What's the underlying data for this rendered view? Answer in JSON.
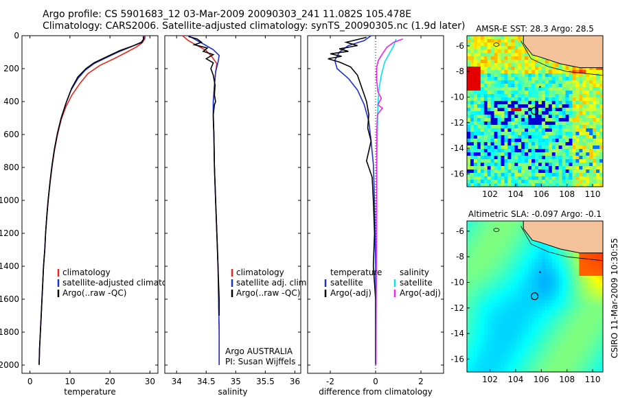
{
  "header": {
    "line1": "Argo profile: CS 5901683_12 03-Mar-2009 20090303_241 11.082S 105.478E",
    "line2": "Climatology: CARS2006. Satellite-adjusted climatology: synTS_20090305.nc (1.9d later)"
  },
  "footer_credit": "CSIRO 11-Mar-2009 10:30:55",
  "colors": {
    "climatology": "#e8251f",
    "satellite": "#1a2fd6",
    "argo": "#000000",
    "cyan": "#00e5ee",
    "magenta": "#ee22ee"
  },
  "chart_data": [
    {
      "type": "line",
      "xlabel": "temperature",
      "xlim": [
        -2,
        32
      ],
      "xticks": [
        "0",
        "10",
        "20",
        "30"
      ],
      "ylim": [
        2050,
        0
      ],
      "yticks": [
        "0",
        "200",
        "400",
        "600",
        "800",
        "1000",
        "1200",
        "1400",
        "1600",
        "1800",
        "2000"
      ],
      "legend": [
        "climatology",
        "satellite-adjusted climatology",
        "Argo(..raw -QC)"
      ],
      "series": [
        {
          "name": "climatology",
          "color": "#e8251f",
          "points": [
            [
              28.8,
              0
            ],
            [
              28.7,
              20
            ],
            [
              28.0,
              45
            ],
            [
              26.5,
              70
            ],
            [
              24.2,
              100
            ],
            [
              21.0,
              140
            ],
            [
              17.5,
              180
            ],
            [
              14.5,
              230
            ],
            [
              12.5,
              290
            ],
            [
              10.5,
              360
            ],
            [
              9.0,
              430
            ],
            [
              7.8,
              510
            ],
            [
              6.9,
              600
            ],
            [
              6.1,
              700
            ],
            [
              5.5,
              800
            ],
            [
              5.0,
              900
            ],
            [
              4.5,
              1000
            ],
            [
              4.2,
              1100
            ],
            [
              3.9,
              1200
            ],
            [
              3.7,
              1300
            ],
            [
              3.4,
              1400
            ],
            [
              3.2,
              1500
            ],
            [
              3.0,
              1600
            ],
            [
              2.8,
              1700
            ],
            [
              2.6,
              1800
            ],
            [
              2.4,
              1900
            ],
            [
              2.3,
              2000
            ]
          ]
        },
        {
          "name": "satellite-adjusted climatology",
          "color": "#1a2fd6",
          "points": [
            [
              28.5,
              0
            ],
            [
              28.5,
              20
            ],
            [
              27.8,
              40
            ],
            [
              25.5,
              65
            ],
            [
              22.0,
              100
            ],
            [
              18.5,
              140
            ],
            [
              16.0,
              170
            ],
            [
              13.8,
              210
            ],
            [
              12.0,
              260
            ],
            [
              10.3,
              330
            ],
            [
              9.0,
              410
            ],
            [
              7.8,
              500
            ],
            [
              6.9,
              590
            ],
            [
              6.1,
              690
            ],
            [
              5.5,
              790
            ],
            [
              5.0,
              890
            ],
            [
              4.6,
              990
            ],
            [
              4.2,
              1100
            ],
            [
              3.9,
              1200
            ],
            [
              3.7,
              1300
            ],
            [
              3.4,
              1400
            ],
            [
              3.2,
              1500
            ],
            [
              3.0,
              1600
            ],
            [
              2.8,
              1700
            ],
            [
              2.6,
              1800
            ],
            [
              2.4,
              1900
            ],
            [
              2.3,
              2000
            ]
          ]
        },
        {
          "name": "Argo(..raw -QC)",
          "color": "#000000",
          "points": [
            [
              28.3,
              5
            ],
            [
              28.4,
              20
            ],
            [
              28.0,
              40
            ],
            [
              26.0,
              60
            ],
            [
              22.5,
              90
            ],
            [
              19.0,
              130
            ],
            [
              16.0,
              165
            ],
            [
              14.0,
              200
            ],
            [
              12.0,
              250
            ],
            [
              10.4,
              320
            ],
            [
              9.0,
              410
            ],
            [
              7.8,
              500
            ],
            [
              6.9,
              590
            ],
            [
              6.1,
              690
            ],
            [
              5.5,
              790
            ],
            [
              5.0,
              890
            ],
            [
              4.6,
              990
            ],
            [
              4.2,
              1100
            ],
            [
              3.9,
              1200
            ],
            [
              3.7,
              1300
            ],
            [
              3.4,
              1400
            ],
            [
              3.2,
              1500
            ],
            [
              3.0,
              1600
            ],
            [
              2.8,
              1700
            ],
            [
              2.6,
              1800
            ],
            [
              2.4,
              1900
            ],
            [
              2.3,
              1995
            ]
          ]
        }
      ]
    },
    {
      "type": "line",
      "xlabel": "salinity",
      "xlim": [
        33.8,
        36.1
      ],
      "xticks": [
        "34",
        "34.5",
        "35",
        "35.5",
        "36"
      ],
      "ylim": [
        2050,
        0
      ],
      "legend": [
        "climatology",
        "satellite adj. clim.",
        "Argo(..raw -QC)"
      ],
      "annotations": [
        "Argo AUSTRALIA",
        "PI: Susan Wijffels"
      ],
      "series": [
        {
          "name": "climatology",
          "color": "#e8251f",
          "points": [
            [
              34.1,
              0
            ],
            [
              34.2,
              30
            ],
            [
              34.35,
              60
            ],
            [
              34.5,
              90
            ],
            [
              34.6,
              130
            ],
            [
              34.68,
              170
            ],
            [
              34.66,
              220
            ],
            [
              34.64,
              300
            ],
            [
              34.62,
              400
            ],
            [
              34.62,
              500
            ],
            [
              34.63,
              600
            ],
            [
              34.64,
              800
            ],
            [
              34.66,
              1000
            ],
            [
              34.68,
              1200
            ],
            [
              34.7,
              1400
            ],
            [
              34.71,
              1600
            ],
            [
              34.72,
              1800
            ],
            [
              34.72,
              2000
            ]
          ]
        },
        {
          "name": "satellite adj. clim.",
          "color": "#1a2fd6",
          "points": [
            [
              34.2,
              0
            ],
            [
              34.3,
              20
            ],
            [
              34.45,
              50
            ],
            [
              34.62,
              85
            ],
            [
              34.72,
              120
            ],
            [
              34.7,
              160
            ],
            [
              34.66,
              220
            ],
            [
              34.64,
              300
            ],
            [
              34.62,
              400
            ],
            [
              34.62,
              500
            ],
            [
              34.63,
              600
            ],
            [
              34.64,
              800
            ],
            [
              34.66,
              1000
            ],
            [
              34.68,
              1200
            ],
            [
              34.7,
              1400
            ],
            [
              34.71,
              1600
            ],
            [
              34.72,
              1800
            ],
            [
              34.72,
              2000
            ]
          ]
        },
        {
          "name": "Argo(..raw -QC)",
          "color": "#000000",
          "points": [
            [
              34.2,
              5
            ],
            [
              34.35,
              20
            ],
            [
              34.42,
              40
            ],
            [
              34.3,
              55
            ],
            [
              34.52,
              75
            ],
            [
              34.45,
              95
            ],
            [
              34.62,
              115
            ],
            [
              34.5,
              140
            ],
            [
              34.62,
              165
            ],
            [
              34.58,
              200
            ],
            [
              34.62,
              240
            ],
            [
              34.65,
              300
            ],
            [
              34.64,
              360
            ],
            [
              34.66,
              400
            ],
            [
              34.64,
              420
            ],
            [
              34.62,
              480
            ],
            [
              34.63,
              600
            ],
            [
              34.64,
              800
            ],
            [
              34.66,
              1000
            ],
            [
              34.68,
              1200
            ],
            [
              34.7,
              1400
            ],
            [
              34.72,
              1600
            ],
            [
              34.72,
              1700
            ]
          ]
        }
      ]
    },
    {
      "type": "line",
      "xlabel": "difference from climatology",
      "xlim": [
        -3,
        3
      ],
      "xticks": [
        "-2",
        "0",
        "2"
      ],
      "ylim": [
        2050,
        0
      ],
      "legend": [
        "temperature",
        "satellite",
        "Argo(-adj)",
        "salinity",
        "satellite",
        "Argo(-adj)"
      ],
      "series": [
        {
          "name": "satellite",
          "color": "#1a2fd6",
          "points": [
            [
              -0.2,
              0
            ],
            [
              -0.5,
              30
            ],
            [
              -1.2,
              60
            ],
            [
              -1.6,
              100
            ],
            [
              -1.8,
              150
            ],
            [
              -1.7,
              200
            ],
            [
              -1.2,
              260
            ],
            [
              -0.8,
              330
            ],
            [
              -0.5,
              420
            ],
            [
              -0.3,
              520
            ],
            [
              -0.2,
              640
            ],
            [
              -0.1,
              780
            ],
            [
              -0.05,
              1000
            ],
            [
              0,
              1400
            ],
            [
              0,
              2000
            ]
          ]
        },
        {
          "name": "Argo(-adj)",
          "color": "#000000",
          "points": [
            [
              -0.4,
              10
            ],
            [
              -1.3,
              40
            ],
            [
              -0.8,
              60
            ],
            [
              -1.6,
              80
            ],
            [
              -1.2,
              95
            ],
            [
              -2.0,
              110
            ],
            [
              -1.5,
              125
            ],
            [
              -2.1,
              140
            ],
            [
              -1.6,
              160
            ],
            [
              -1.1,
              190
            ],
            [
              -0.8,
              240
            ],
            [
              -0.6,
              320
            ],
            [
              -0.4,
              400
            ],
            [
              -0.3,
              480
            ],
            [
              -0.35,
              560
            ],
            [
              -0.2,
              640
            ],
            [
              -0.4,
              760
            ],
            [
              -0.15,
              860
            ],
            [
              -0.1,
              1000
            ],
            [
              -0.05,
              1200
            ],
            [
              -0.1,
              1400
            ],
            [
              0,
              1600
            ],
            [
              0,
              1800
            ],
            [
              0,
              1995
            ]
          ]
        },
        {
          "name": "satellite",
          "color": "#00e5ee",
          "points": [
            [
              0.9,
              20
            ],
            [
              0.8,
              60
            ],
            [
              0.6,
              110
            ],
            [
              0.4,
              160
            ],
            [
              0.25,
              240
            ],
            [
              0.15,
              320
            ],
            [
              0.1,
              420
            ],
            [
              0.08,
              560
            ],
            [
              0.05,
              800
            ],
            [
              0.04,
              1200
            ],
            [
              0.03,
              1600
            ],
            [
              0.02,
              2000
            ]
          ]
        },
        {
          "name": "Argo(-adj)",
          "color": "#ee22ee",
          "points": [
            [
              1.2,
              20
            ],
            [
              0.8,
              40
            ],
            [
              0.5,
              70
            ],
            [
              0.3,
              110
            ],
            [
              0.12,
              150
            ],
            [
              0.05,
              190
            ],
            [
              0.04,
              260
            ],
            [
              0.1,
              340
            ],
            [
              0.25,
              380
            ],
            [
              0.1,
              420
            ],
            [
              0.3,
              440
            ],
            [
              0.08,
              480
            ],
            [
              0.05,
              600
            ],
            [
              0.05,
              900
            ],
            [
              0.04,
              1200
            ],
            [
              0.03,
              1500
            ],
            [
              0.02,
              1800
            ],
            [
              0.02,
              1995
            ]
          ]
        }
      ]
    },
    {
      "type": "heatmap",
      "title": "AMSR-E SST: 28.3 Argo: 28.5",
      "xlim": [
        100.2,
        110.8
      ],
      "ylim": [
        -17,
        -5.2
      ],
      "xticks": [
        "102",
        "104",
        "106",
        "108",
        "110"
      ],
      "yticks": [
        "-6",
        "-8",
        "-10",
        "-12",
        "-14",
        "-16"
      ],
      "argo_position": [
        105.478,
        -11.082
      ]
    },
    {
      "type": "heatmap",
      "title": "Altimetric SLA: -0.097 Argo: -0.1",
      "xlim": [
        100.2,
        110.8
      ],
      "ylim": [
        -17,
        -5.2
      ],
      "xticks": [
        "102",
        "104",
        "106",
        "108",
        "110"
      ],
      "yticks": [
        "-6",
        "-8",
        "-10",
        "-12",
        "-14",
        "-16"
      ],
      "argo_position": [
        105.478,
        -11.082
      ]
    }
  ]
}
